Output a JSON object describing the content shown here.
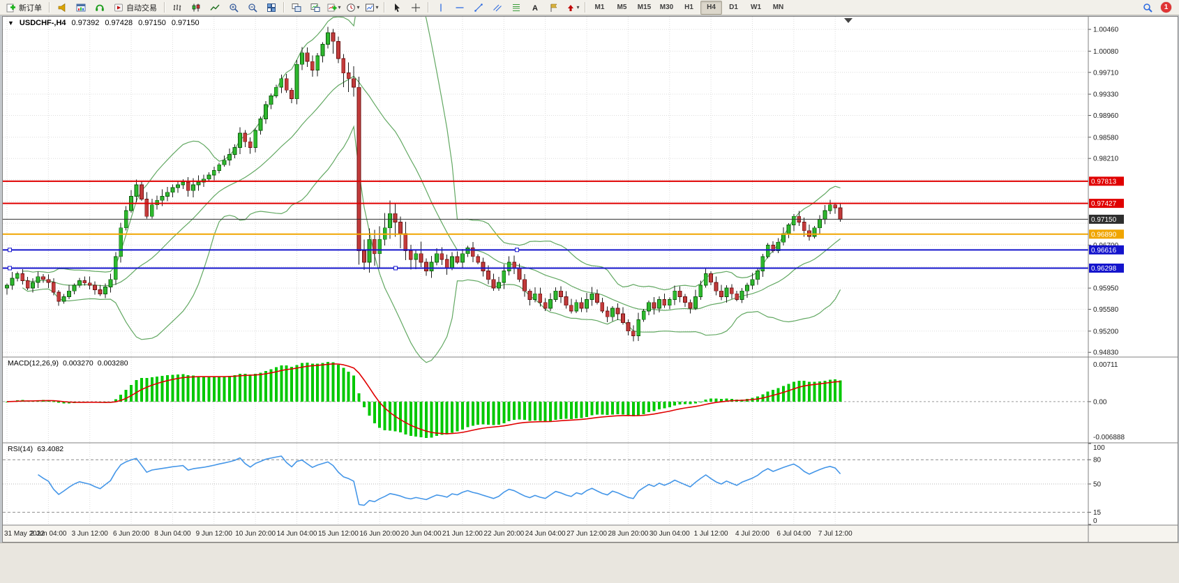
{
  "toolbar": {
    "new_order": "新订单",
    "auto_trading": "自动交易",
    "timeframes": [
      "M1",
      "M5",
      "M15",
      "M30",
      "H1",
      "H4",
      "D1",
      "W1",
      "MN"
    ],
    "active_timeframe": "H4",
    "notification_badge": "1",
    "icons": [
      "new-order",
      "megaphone",
      "chart-window",
      "metaeditor",
      "auto-trading",
      "bar-chart",
      "candlestick-chart",
      "line-chart",
      "zoom-in",
      "zoom-out",
      "tile-windows",
      "arrange-windows",
      "cascade-windows",
      "add-indicator",
      "timeframe-clock",
      "chart-template",
      "cursor",
      "crosshair",
      "vertical-line",
      "horizontal-line",
      "trendline",
      "equidistant-channel",
      "fibonacci",
      "text",
      "text-label",
      "arrow-tools",
      "search",
      "notification"
    ]
  },
  "chart_title": {
    "symbol": "USDCHF-,H4",
    "open": "0.97392",
    "high": "0.97428",
    "low": "0.97150",
    "close": "0.97150"
  },
  "chart_data": {
    "type": "candlestick",
    "symbol": "USDCHF-",
    "period": "H4",
    "label_every_n_candles": 8,
    "x_labels": [
      "31 May 2022",
      "2 Jun 04:00",
      "3 Jun 12:00",
      "6 Jun 20:00",
      "8 Jun 04:00",
      "9 Jun 12:00",
      "10 Jun 20:00",
      "14 Jun 04:00",
      "15 Jun 12:00",
      "16 Jun 20:00",
      "20 Jun 04:00",
      "21 Jun 12:00",
      "22 Jun 20:00",
      "24 Jun 04:00",
      "27 Jun 12:00",
      "28 Jun 20:00",
      "30 Jun 04:00",
      "1 Jul 12:00",
      "4 Jul 20:00",
      "6 Jul 04:00",
      "7 Jul 12:00"
    ],
    "closes": [
      0.96,
      0.9612,
      0.962,
      0.9608,
      0.9595,
      0.9605,
      0.9615,
      0.961,
      0.9605,
      0.9588,
      0.9572,
      0.958,
      0.959,
      0.96,
      0.9608,
      0.9604,
      0.96,
      0.9592,
      0.9585,
      0.9597,
      0.961,
      0.965,
      0.97,
      0.973,
      0.9755,
      0.9775,
      0.975,
      0.972,
      0.974,
      0.9748,
      0.9755,
      0.9762,
      0.977,
      0.9775,
      0.978,
      0.9765,
      0.9775,
      0.978,
      0.9785,
      0.9792,
      0.98,
      0.981,
      0.9818,
      0.9828,
      0.984,
      0.9865,
      0.985,
      0.984,
      0.987,
      0.989,
      0.9915,
      0.993,
      0.9945,
      0.996,
      0.994,
      0.9925,
      0.9985,
      1.0005,
      0.999,
      0.9975,
      1.0,
      1.002,
      1.004,
      1.0025,
      0.9995,
      0.997,
      0.996,
      0.9945,
      0.966,
      0.964,
      0.968,
      0.9655,
      0.968,
      0.97,
      0.9725,
      0.971,
      0.969,
      0.966,
      0.9645,
      0.9655,
      0.964,
      0.9625,
      0.964,
      0.9655,
      0.9645,
      0.963,
      0.965,
      0.964,
      0.9655,
      0.9665,
      0.965,
      0.964,
      0.9625,
      0.961,
      0.9595,
      0.9605,
      0.9625,
      0.964,
      0.963,
      0.961,
      0.959,
      0.9575,
      0.9585,
      0.957,
      0.956,
      0.9575,
      0.959,
      0.958,
      0.9565,
      0.9555,
      0.957,
      0.956,
      0.9575,
      0.9585,
      0.957,
      0.9555,
      0.9545,
      0.956,
      0.955,
      0.9535,
      0.952,
      0.9512,
      0.954,
      0.9555,
      0.957,
      0.956,
      0.9575,
      0.9565,
      0.9575,
      0.959,
      0.958,
      0.957,
      0.956,
      0.958,
      0.96,
      0.962,
      0.9605,
      0.959,
      0.958,
      0.9595,
      0.9585,
      0.9575,
      0.959,
      0.96,
      0.961,
      0.9625,
      0.965,
      0.967,
      0.966,
      0.9675,
      0.969,
      0.9705,
      0.972,
      0.971,
      0.9695,
      0.9685,
      0.97,
      0.9715,
      0.973,
      0.974,
      0.9735,
      0.9715
    ],
    "bollinger": {
      "period": 20,
      "deviation": 2
    },
    "horizontal_lines": [
      {
        "price": 0.97813,
        "label": "0.97813",
        "color": "#e00000",
        "width": 2,
        "handles": []
      },
      {
        "price": 0.97427,
        "label": "0.97427",
        "color": "#e00000",
        "width": 2,
        "handles": []
      },
      {
        "price": 0.9715,
        "label": "0.97150",
        "color": "#2e2e2e",
        "width": 1,
        "handles": []
      },
      {
        "price": 0.9689,
        "label": "0.96890",
        "color": "#f0a500",
        "width": 2,
        "handles": []
      },
      {
        "price": 0.96616,
        "label": "0.96616",
        "color": "#1414cc",
        "width": 2,
        "handles": [
          10,
          737
        ]
      },
      {
        "price": 0.96298,
        "label": "0.96298",
        "color": "#1414cc",
        "width": 2,
        "handles": [
          10,
          563
        ]
      }
    ],
    "price_scale": {
      "min": 0.9476,
      "max": 1.0068,
      "gridlines": [
        {
          "price": 1.0046,
          "label": "1.00460"
        },
        {
          "price": 1.0008,
          "label": "1.00080"
        },
        {
          "price": 0.9971,
          "label": "0.99710"
        },
        {
          "price": 0.9933,
          "label": "0.99330"
        },
        {
          "price": 0.9896,
          "label": "0.98960"
        },
        {
          "price": 0.9858,
          "label": "0.98580"
        },
        {
          "price": 0.9821,
          "label": "0.98210"
        },
        {
          "price": 0.9784,
          "label": ""
        },
        {
          "price": 0.9746,
          "label": ""
        },
        {
          "price": 0.9708,
          "label": ""
        },
        {
          "price": 0.967,
          "label": "0.96700"
        },
        {
          "price": 0.9632,
          "label": ""
        },
        {
          "price": 0.9595,
          "label": "0.95950"
        },
        {
          "price": 0.9558,
          "label": "0.95580"
        },
        {
          "price": 0.952,
          "label": "0.95200"
        },
        {
          "price": 0.9483,
          "label": "0.94830"
        }
      ]
    },
    "macd": {
      "label": "MACD(12,26,9)",
      "values": [
        "0.003270",
        "0.003280"
      ],
      "fast": 12,
      "slow": 26,
      "signal": 9,
      "scale": [
        {
          "label": "0.00711"
        },
        {
          "label": "0.00"
        },
        {
          "label": "-0.006888"
        }
      ]
    },
    "rsi": {
      "label": "RSI(14)",
      "value": "63.4082",
      "period": 14,
      "levels": [
        {
          "v": 80,
          "style": "dashed"
        },
        {
          "v": 50,
          "style": "dotted"
        },
        {
          "v": 15,
          "style": "dashed"
        }
      ],
      "scale_labels": [
        {
          "v": 100,
          "label": "100"
        },
        {
          "v": 80,
          "label": "80"
        },
        {
          "v": 50,
          "label": "50"
        },
        {
          "v": 15,
          "label": "15"
        },
        {
          "v": 0,
          "label": "0"
        }
      ]
    },
    "colors": {
      "up_candle": "#2eb82e",
      "down_candle": "#c23b3b",
      "wick": "#1a1a1a",
      "bollinger": "#62a862",
      "macd_histogram": "#00c800",
      "macd_signal": "#e00000",
      "rsi_line": "#4496e8",
      "grid": "#dcdcdc",
      "red_line": "#e00000",
      "blue_line": "#1414cc",
      "orange_line": "#f0a500",
      "current_price_line": "#2e2e2e"
    }
  }
}
